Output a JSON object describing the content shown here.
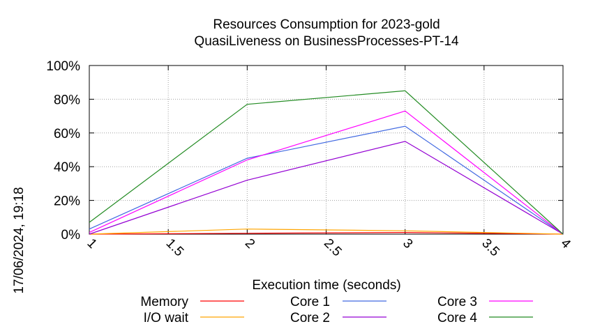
{
  "chart_data": {
    "type": "line",
    "title": "Resources Consumption for 2023-gold",
    "subtitle": "QuasiLiveness on BusinessProcesses-PT-14",
    "xlabel": "Execution time (seconds)",
    "ylabel": "",
    "side_label": "17/06/2024, 19:18",
    "xlim": [
      1,
      4
    ],
    "ylim": [
      0,
      100
    ],
    "x_ticks": [
      "1",
      "1.5",
      "2",
      "2.5",
      "3",
      "3.5",
      "4"
    ],
    "y_ticks": [
      "0%",
      "20%",
      "40%",
      "60%",
      "80%",
      "100%"
    ],
    "grid": true,
    "legend_position": "bottom",
    "x": [
      1,
      2,
      3,
      4
    ],
    "series": [
      {
        "name": "Memory",
        "color": "#ff0000",
        "values": [
          0,
          0.5,
          1,
          0
        ]
      },
      {
        "name": "I/O wait",
        "color": "#ffa500",
        "values": [
          0,
          3,
          2,
          0
        ]
      },
      {
        "name": "Core 1",
        "color": "#4169e1",
        "values": [
          3,
          45,
          64,
          0
        ]
      },
      {
        "name": "Core 2",
        "color": "#9400d3",
        "values": [
          0,
          32,
          55,
          0
        ]
      },
      {
        "name": "Core 3",
        "color": "#ff00ff",
        "values": [
          1,
          44,
          73,
          0
        ]
      },
      {
        "name": "Core 4",
        "color": "#228b22",
        "values": [
          7,
          77,
          85,
          0
        ]
      }
    ]
  }
}
